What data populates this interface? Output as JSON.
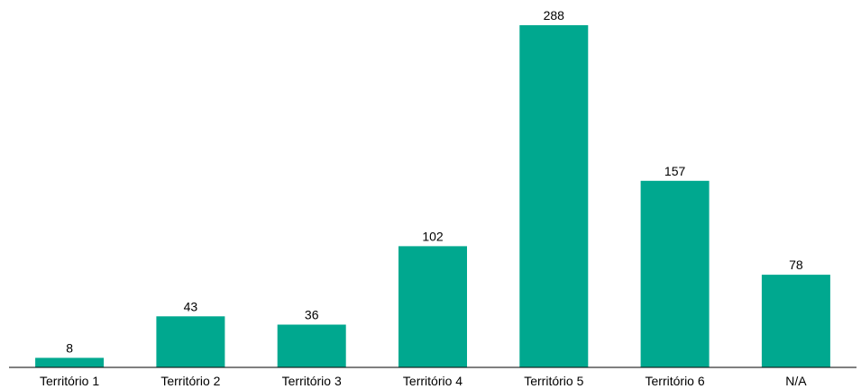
{
  "chart_data": {
    "type": "bar",
    "title": "",
    "xlabel": "",
    "ylabel": "",
    "categories": [
      "Território 1",
      "Território 2",
      "Território 3",
      "Território 4",
      "Território 5",
      "Território 6",
      "N/A"
    ],
    "values": [
      8,
      43,
      36,
      102,
      288,
      157,
      78
    ],
    "ylim": [
      0,
      300
    ],
    "grid": false,
    "legend": "none",
    "colors": {
      "bar": "#00A88F",
      "axis": "#000000",
      "text": "#000000"
    }
  }
}
